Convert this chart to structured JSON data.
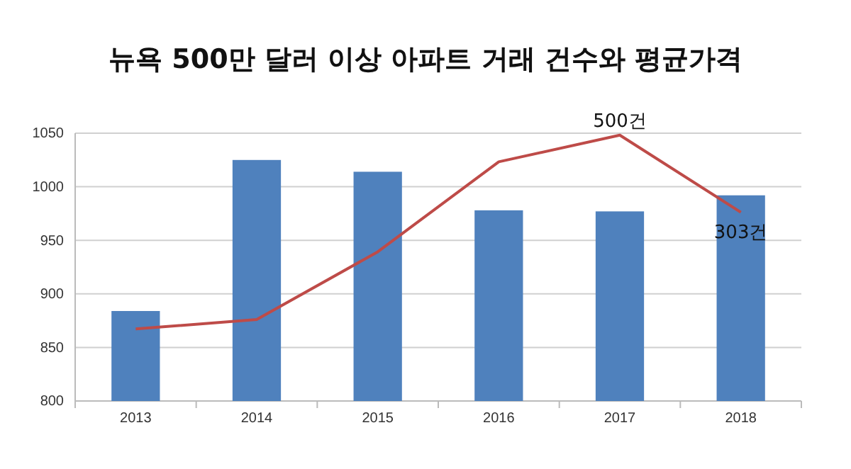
{
  "chart_data": {
    "type": "bar",
    "title": "뉴욕 500만 달러 이상 아파트 거래 건수와 평균가격",
    "categories": [
      "2013",
      "2014",
      "2015",
      "2016",
      "2017",
      "2018"
    ],
    "series": [
      {
        "color": "#4f81bd",
        "values": [
          884,
          1025,
          1014,
          978,
          977,
          992
        ]
      },
      {
        "type": "line",
        "axis": "y2",
        "color": "#be4b48",
        "values": [
          5,
          29,
          202,
          432,
          500,
          303
        ],
        "value_labels": [
          null,
          null,
          null,
          null,
          "500건",
          "303건"
        ]
      }
    ],
    "ylim": [
      800,
      1050
    ],
    "yticks": [
      800,
      850,
      900,
      950,
      1000,
      1050
    ],
    "y2lim": [
      -179,
      505
    ],
    "grid": "y",
    "tick_labels": "xy"
  }
}
